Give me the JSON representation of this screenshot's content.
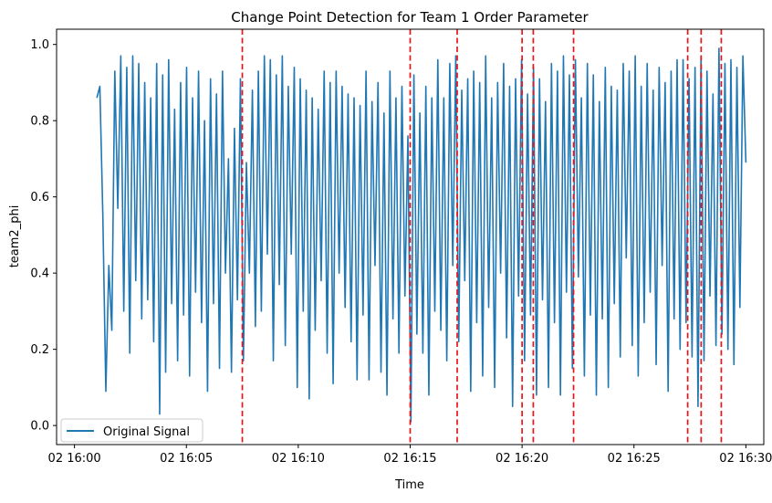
{
  "chart_data": {
    "type": "line",
    "title": "Change Point Detection for Team 1 Order Parameter",
    "xlabel": "Time",
    "ylabel": "team2_phi",
    "x_range_minutes": [
      -0.8,
      30.8
    ],
    "x_origin_label": "02 16:00",
    "ylim": [
      -0.05,
      1.04
    ],
    "x_ticks": [
      {
        "minute": 0,
        "label": "02 16:00"
      },
      {
        "minute": 5,
        "label": "02 16:05"
      },
      {
        "minute": 10,
        "label": "02 16:10"
      },
      {
        "minute": 15,
        "label": "02 16:15"
      },
      {
        "minute": 20,
        "label": "02 16:20"
      },
      {
        "minute": 25,
        "label": "02 16:25"
      },
      {
        "minute": 30,
        "label": "02 16:30"
      }
    ],
    "y_ticks": [
      {
        "value": 0.0,
        "label": "0.0"
      },
      {
        "value": 0.2,
        "label": "0.2"
      },
      {
        "value": 0.4,
        "label": "0.4"
      },
      {
        "value": 0.6,
        "label": "0.6"
      },
      {
        "value": 0.8,
        "label": "0.8"
      },
      {
        "value": 1.0,
        "label": "1.0"
      }
    ],
    "series": [
      {
        "name": "Original Signal",
        "color": "#1f77b4",
        "x_minute_start": 1.0,
        "x_minute_end": 30.0,
        "values": [
          0.86,
          0.89,
          0.55,
          0.09,
          0.42,
          0.25,
          0.93,
          0.57,
          0.97,
          0.3,
          0.94,
          0.19,
          0.97,
          0.38,
          0.95,
          0.28,
          0.9,
          0.33,
          0.86,
          0.22,
          0.95,
          0.03,
          0.92,
          0.14,
          0.96,
          0.32,
          0.83,
          0.17,
          0.9,
          0.29,
          0.94,
          0.13,
          0.86,
          0.35,
          0.93,
          0.27,
          0.8,
          0.09,
          0.91,
          0.32,
          0.87,
          0.15,
          0.93,
          0.4,
          0.7,
          0.14,
          0.78,
          0.33,
          0.91,
          0.17,
          0.69,
          0.4,
          0.88,
          0.26,
          0.93,
          0.3,
          0.97,
          0.45,
          0.96,
          0.17,
          0.92,
          0.37,
          0.97,
          0.21,
          0.89,
          0.45,
          0.94,
          0.1,
          0.91,
          0.3,
          0.88,
          0.07,
          0.86,
          0.25,
          0.83,
          0.38,
          0.93,
          0.19,
          0.9,
          0.11,
          0.93,
          0.4,
          0.89,
          0.31,
          0.87,
          0.22,
          0.86,
          0.12,
          0.84,
          0.29,
          0.93,
          0.12,
          0.85,
          0.42,
          0.9,
          0.14,
          0.82,
          0.08,
          0.93,
          0.28,
          0.86,
          0.19,
          0.89,
          0.34,
          0.76,
          0.01,
          0.92,
          0.24,
          0.82,
          0.19,
          0.89,
          0.08,
          0.86,
          0.3,
          0.96,
          0.25,
          0.86,
          0.17,
          0.95,
          0.42,
          0.97,
          0.22,
          0.88,
          0.38,
          0.91,
          0.09,
          0.93,
          0.27,
          0.9,
          0.13,
          0.97,
          0.31,
          0.86,
          0.1,
          0.9,
          0.4,
          0.95,
          0.23,
          0.89,
          0.05,
          0.91,
          0.34,
          0.96,
          0.17,
          0.87,
          0.29,
          0.94,
          0.08,
          0.91,
          0.33,
          0.85,
          0.1,
          0.95,
          0.27,
          0.93,
          0.08,
          0.97,
          0.35,
          0.92,
          0.15,
          0.96,
          0.39,
          0.86,
          0.13,
          0.95,
          0.29,
          0.92,
          0.08,
          0.85,
          0.28,
          0.94,
          0.1,
          0.89,
          0.32,
          0.88,
          0.18,
          0.95,
          0.44,
          0.93,
          0.21,
          0.97,
          0.13,
          0.89,
          0.27,
          0.95,
          0.35,
          0.88,
          0.16,
          0.94,
          0.42,
          0.9,
          0.09,
          0.93,
          0.28,
          0.96,
          0.2,
          0.96,
          0.27,
          0.91,
          0.18,
          0.94,
          0.05,
          0.97,
          0.17,
          0.93,
          0.34,
          0.87,
          0.21,
          0.99,
          0.24,
          0.95,
          0.2,
          0.96,
          0.16,
          0.94,
          0.31,
          0.97,
          0.69
        ]
      }
    ],
    "change_points": {
      "color": "#e8161b",
      "style": "dashed",
      "minutes": [
        7.5,
        15.0,
        17.1,
        20.0,
        20.5,
        22.3,
        27.4,
        28.0,
        28.9
      ]
    },
    "legend": {
      "position": "lower-left",
      "entries": [
        {
          "label": "Original Signal",
          "color": "#1f77b4"
        }
      ]
    },
    "grid": false
  }
}
